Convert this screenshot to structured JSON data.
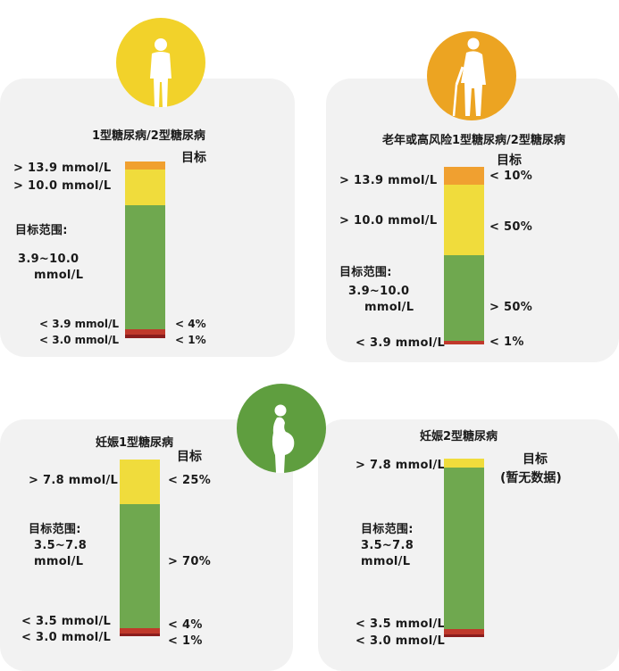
{
  "colors": {
    "very_high": "#f0a030",
    "high": "#f0dc3c",
    "target": "#6fa84f",
    "low": "#c0392b",
    "very_low": "#8b1d1d",
    "circle_yellow": "#f2d22a",
    "circle_orange": "#eca422",
    "circle_green": "#5f9e3f",
    "panel_bg": "#f2f2f2"
  },
  "icons": [
    "adult-silhouette-icon",
    "elderly-with-cane-icon",
    "pregnant-woman-icon"
  ],
  "panels": [
    {
      "title": "1型糖尿病/2型糖尿病",
      "target_header": "目标",
      "labels": {
        "very_high": "> 13.9 mmol/L",
        "high": "> 10.0 mmol/L",
        "range_title": "目标范围:",
        "range_line1": "3.9~10.0",
        "range_line2": "mmol/L",
        "low": "< 3.9 mmol/L",
        "very_low": "< 3.0 mmol/L"
      },
      "targets": {
        "low": "< 4%",
        "very_low": "< 1%"
      }
    },
    {
      "title": "老年或高风险1型糖尿病/2型糖尿病",
      "target_header": "目标",
      "labels": {
        "very_high": "> 13.9 mmol/L",
        "high": "> 10.0 mmol/L",
        "range_title": "目标范围:",
        "range_line1": "3.9~10.0",
        "range_line2": "mmol/L",
        "low": "< 3.9 mmol/L"
      },
      "targets": {
        "very_high": "< 10%",
        "high": "< 50%",
        "target": "> 50%",
        "low": "< 1%"
      }
    },
    {
      "title": "妊娠1型糖尿病",
      "target_header": "目标",
      "labels": {
        "high": "> 7.8 mmol/L",
        "range_title": "目标范围:",
        "range_line1": "3.5~7.8",
        "range_line2": "mmol/L",
        "low": "< 3.5 mmol/L",
        "very_low": "< 3.0 mmol/L"
      },
      "targets": {
        "high": "< 25%",
        "target": "> 70%",
        "low": "< 4%",
        "very_low": "< 1%"
      }
    },
    {
      "title": "妊娠2型糖尿病",
      "target_header": "目标",
      "target_note": "(暂无数据)",
      "labels": {
        "high": "> 7.8 mmol/L",
        "range_title": "目标范围:",
        "range_line1": "3.5~7.8",
        "range_line2": "mmol/L",
        "low": "< 3.5 mmol/L",
        "very_low": "< 3.0 mmol/L"
      }
    }
  ]
}
